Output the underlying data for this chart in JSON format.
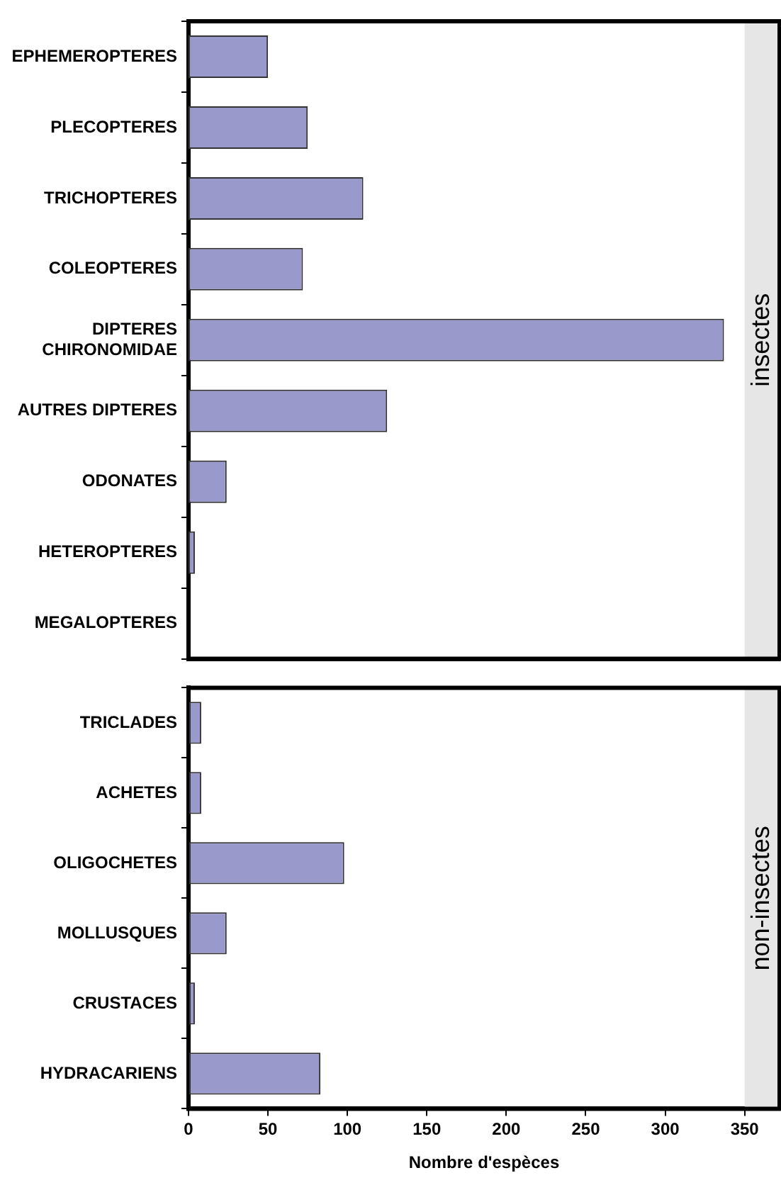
{
  "chart_data": [
    {
      "type": "bar",
      "orientation": "horizontal",
      "tick_labels": "y",
      "categories": [
        "EPHEMEROPTERES",
        "PLECOPTERES",
        "TRICHOPTERES",
        "COLEOPTERES",
        "DIPTERES\nCHIRONOMIDAE",
        "AUTRES DIPTERES",
        "ODONATES",
        "HETEROPTERES",
        "MEGALOPTERES"
      ],
      "values": [
        50,
        75,
        110,
        72,
        337,
        125,
        24,
        4,
        null
      ],
      "color": "#9999cc",
      "xlim": [
        0,
        372
      ],
      "xticks": [
        0,
        50,
        100,
        150,
        200,
        250,
        300,
        350
      ],
      "bands": [
        {
          "axis": "x",
          "from": 350,
          "to": 372,
          "color": "#e6e6e6"
        }
      ],
      "annotations": [
        "insectes"
      ]
    },
    {
      "type": "bar",
      "orientation": "horizontal",
      "xlabel": "Nombre d'espèces",
      "categories": [
        "TRICLADES",
        "ACHETES",
        "OLIGOCHETES",
        "MOLLUSQUES",
        "CRUSTACES",
        "HYDRACARIENS"
      ],
      "values": [
        8,
        8,
        98,
        24,
        4,
        83
      ],
      "color": "#9999cc",
      "xlim": [
        0,
        372
      ],
      "xticks": [
        0,
        50,
        100,
        150,
        200,
        250,
        300,
        350
      ],
      "bands": [
        {
          "axis": "x",
          "from": 350,
          "to": 372,
          "color": "#e6e6e6"
        }
      ],
      "annotations": [
        "non-insectes"
      ]
    }
  ]
}
